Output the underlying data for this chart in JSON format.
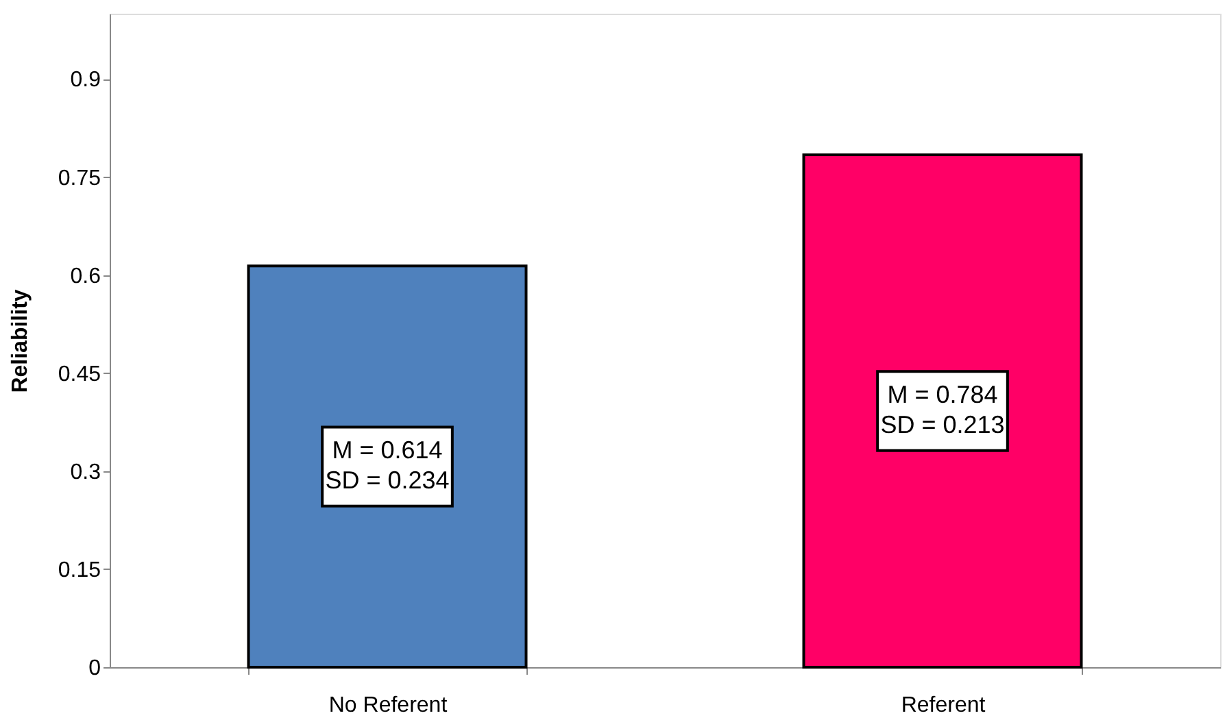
{
  "chart_data": {
    "type": "bar",
    "ylabel": "Reliability",
    "categories": [
      "No Referent",
      "Referent"
    ],
    "values": [
      0.614,
      0.784
    ],
    "colors": [
      "#4f81bd",
      "#ff0066"
    ],
    "value_labels": [
      "M = 0.614\nSD = 0.234",
      "M = 0.784\nSD = 0.213"
    ],
    "ylim": [
      0,
      1.0
    ],
    "yticks": [
      0,
      0.15,
      0.3,
      0.45,
      0.6,
      0.75,
      0.9
    ],
    "grid": false
  }
}
